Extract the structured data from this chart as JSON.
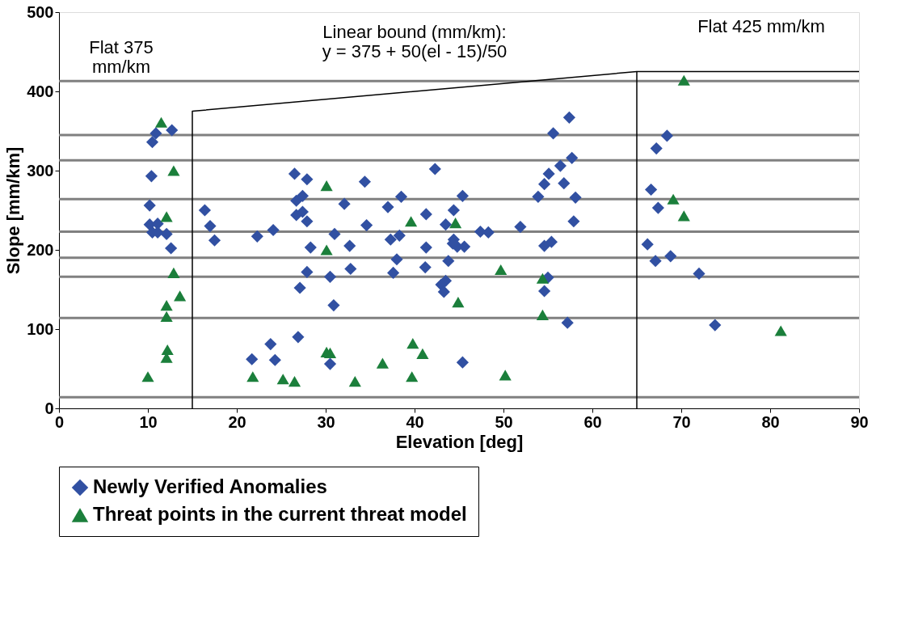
{
  "chart_data": {
    "type": "scatter",
    "xlabel": "Elevation [deg]",
    "ylabel": "Slope [mm/km]",
    "xlim": [
      0,
      90
    ],
    "xticks": [
      0,
      10,
      20,
      30,
      40,
      50,
      60,
      70,
      80,
      90
    ],
    "ylim": [
      0,
      500
    ],
    "yticks": [
      0,
      100,
      200,
      300,
      400,
      500
    ],
    "grid": false,
    "legend": "bottom",
    "annotations": [
      "Flat 375\nmm/km",
      "Linear bound (mm/km):\ny = 375 + 50(el - 15)/50",
      "Flat 425 mm/km"
    ],
    "ref_lines": [
      {
        "axis": "y",
        "value": 413,
        "color": "#808080"
      },
      {
        "axis": "y",
        "value": 345,
        "color": "#808080"
      },
      {
        "axis": "y",
        "value": 313,
        "color": "#808080"
      },
      {
        "axis": "y",
        "value": 264,
        "color": "#808080"
      },
      {
        "axis": "y",
        "value": 223,
        "color": "#808080"
      },
      {
        "axis": "y",
        "value": 190,
        "color": "#808080"
      },
      {
        "axis": "y",
        "value": 166,
        "color": "#808080"
      },
      {
        "axis": "y",
        "value": 114,
        "color": "#808080"
      },
      {
        "axis": "y",
        "value": 14,
        "color": "#808080"
      }
    ],
    "series": [
      {
        "name": "Newly Verified Anomalies",
        "marker": "diamond",
        "color": "#3150a2",
        "x": [
          12.7,
          10.9,
          10.5,
          10.4,
          10.2,
          10.2,
          11.1,
          10.5,
          11.1,
          12.1,
          12.6,
          16.4,
          17.0,
          17.5,
          22.3,
          24.1,
          26.5,
          27.9,
          26.7,
          27.4,
          26.7,
          27.4,
          27.9,
          28.3,
          27.9,
          27.1,
          26.9,
          23.8,
          21.7,
          24.3,
          42.3,
          34.4,
          38.5,
          45.4,
          53.9,
          32.1,
          37.0,
          41.3,
          44.4,
          34.6,
          43.5,
          31.0,
          38.3,
          37.3,
          47.4,
          48.3,
          51.9,
          44.4,
          44.8,
          45.6,
          44.3,
          54.6,
          32.7,
          41.3,
          38.0,
          43.8,
          30.5,
          32.8,
          37.6,
          41.2,
          43.5,
          43.0,
          43.3,
          30.9,
          54.6,
          30.5,
          45.4,
          57.4,
          55.6,
          57.7,
          56.4,
          55.1,
          54.6,
          56.8,
          58.1,
          57.9,
          55.4,
          55.0,
          57.2,
          68.4,
          67.2,
          66.6,
          67.4,
          66.2,
          67.1,
          68.8,
          72.0,
          73.8
        ],
        "values": [
          351,
          347,
          336,
          293,
          256,
          232,
          233,
          222,
          222,
          220,
          202,
          250,
          230,
          212,
          217,
          225,
          296,
          289,
          262,
          268,
          244,
          248,
          236,
          203,
          172,
          152,
          90,
          81,
          62,
          61,
          302,
          286,
          267,
          268,
          267,
          258,
          254,
          245,
          250,
          231,
          232,
          220,
          218,
          213,
          223,
          222,
          229,
          213,
          204,
          204,
          208,
          205,
          205,
          203,
          188,
          186,
          166,
          176,
          171,
          178,
          161,
          156,
          147,
          130,
          148,
          56,
          58,
          367,
          347,
          316,
          306,
          296,
          283,
          284,
          266,
          236,
          210,
          165,
          108,
          344,
          328,
          276,
          253,
          207,
          186,
          192,
          170,
          105
        ]
      },
      {
        "name": "Threat points in the current threat model",
        "marker": "triangle",
        "color": "#1b7f3b",
        "x": [
          11.5,
          12.9,
          12.1,
          12.9,
          13.6,
          12.1,
          12.1,
          12.2,
          12.1,
          10.0,
          21.8,
          25.2,
          26.5,
          30.1,
          39.6,
          44.6,
          30.1,
          49.7,
          54.4,
          44.9,
          54.4,
          39.8,
          30.5,
          30.1,
          40.9,
          36.4,
          39.7,
          50.2,
          33.3,
          70.3,
          69.1,
          70.3,
          81.2
        ],
        "values": [
          361,
          300,
          242,
          171,
          142,
          130,
          116,
          74,
          64,
          40,
          40,
          37,
          34,
          281,
          236,
          234,
          200,
          175,
          164,
          134,
          118,
          82,
          70,
          71,
          69,
          57,
          40,
          42,
          34,
          414,
          264,
          243,
          98
        ]
      },
      {
        "type": "line",
        "color": "#000000",
        "line_style": "solid",
        "x": [
          15,
          15,
          65,
          90
        ],
        "values": [
          0,
          375,
          425,
          425
        ]
      },
      {
        "type": "line",
        "color": "#000000",
        "line_style": "solid",
        "x": [
          65,
          65
        ],
        "values": [
          0,
          425
        ]
      }
    ]
  }
}
